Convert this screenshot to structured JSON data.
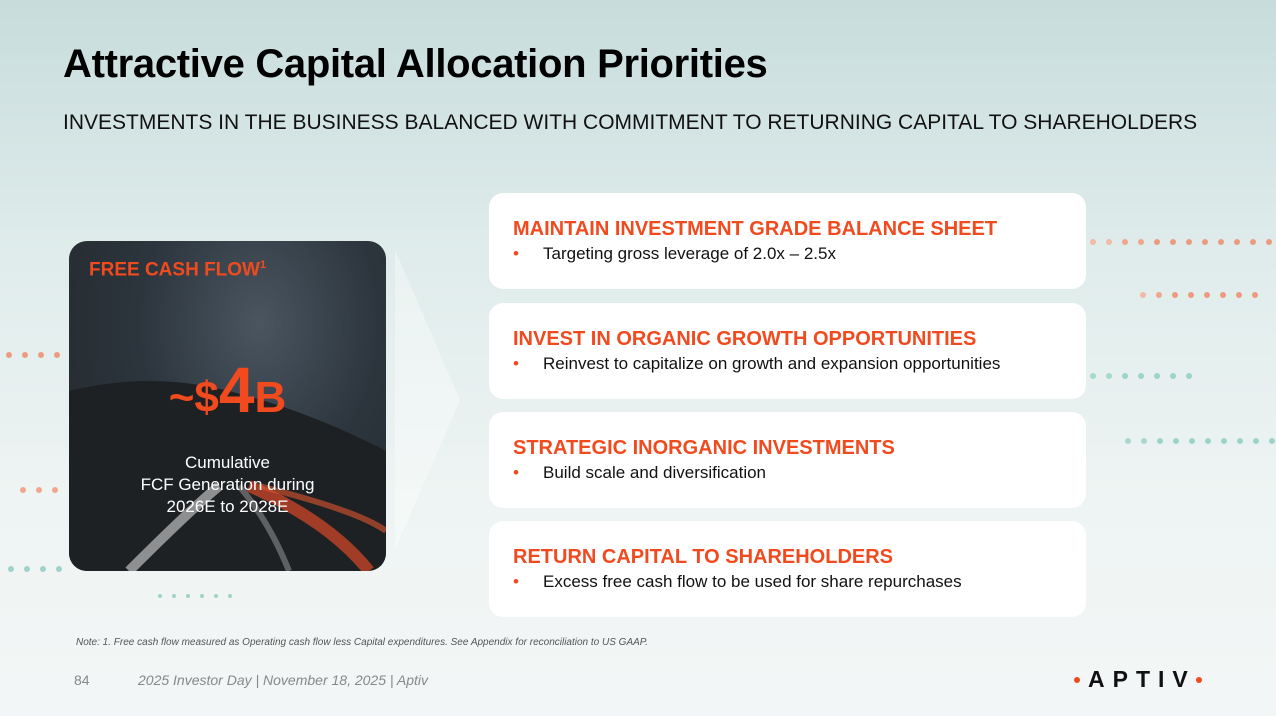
{
  "title": "Attractive Capital Allocation Priorities",
  "subtitle": "INVESTMENTS IN THE BUSINESS BALANCED WITH COMMITMENT TO RETURNING CAPITAL TO SHAREHOLDERS",
  "fcf": {
    "heading": "FREE CASH FLOW",
    "footnote_mark": "1",
    "tilde": "~$",
    "number": "4",
    "unit": "B",
    "caption_line1": "Cumulative",
    "caption_line2": "FCF Generation during",
    "caption_line3": "2026E to 2028E"
  },
  "priorities": [
    {
      "heading": "MAINTAIN INVESTMENT GRADE BALANCE SHEET",
      "bullet": "Targeting gross leverage of 2.0x – 2.5x"
    },
    {
      "heading": "INVEST IN ORGANIC GROWTH OPPORTUNITIES",
      "bullet": "Reinvest to capitalize on growth and expansion opportunities"
    },
    {
      "heading": "STRATEGIC INORGANIC INVESTMENTS",
      "bullet": "Build scale and diversification"
    },
    {
      "heading": "RETURN CAPITAL TO SHAREHOLDERS",
      "bullet": "Excess free cash flow to be used for share repurchases"
    }
  ],
  "bullet_glyph": "•",
  "note": "Note: 1. Free cash flow measured as Operating cash flow less Capital expenditures. See Appendix for reconciliation to US GAAP.",
  "page_number": "84",
  "footer": "2025 Investor Day | November 18, 2025 | Aptiv",
  "logo": "APTIV",
  "colors": {
    "accent": "#f04a1e",
    "teal": "#8fcfc4"
  }
}
